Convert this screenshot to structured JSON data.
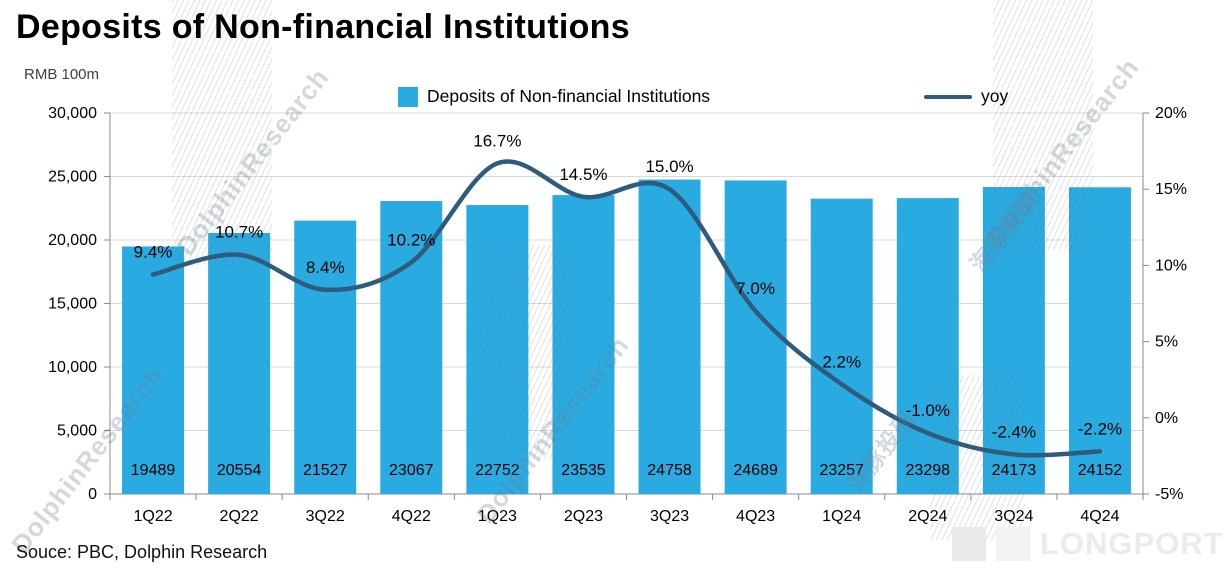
{
  "title": "Deposits of Non-financial Institutions",
  "unit_label": "RMB 100m",
  "source": "Souce: PBC, Dolphin Research",
  "legend": {
    "bars_label": "Deposits of Non-financial Institutions",
    "line_label": "yoy"
  },
  "watermarks": {
    "brand": "DolphinResearch",
    "brand_cn": "海豚投研",
    "logo": "LONGPORT"
  },
  "colors": {
    "bar": "#29ABE2",
    "line": "#2F5B7C",
    "grid": "#D9D9D9",
    "axis": "#898989",
    "text": "#000000"
  },
  "chart_data": {
    "type": "bar+line",
    "title": "Deposits of Non-financial Institutions",
    "ylabel_left": "RMB 100m",
    "legend_position": "top",
    "grid": true,
    "categories": [
      "1Q22",
      "2Q22",
      "3Q22",
      "4Q22",
      "1Q23",
      "2Q23",
      "3Q23",
      "4Q23",
      "1Q24",
      "2Q24",
      "3Q24",
      "4Q24"
    ],
    "series": [
      {
        "name": "Deposits of Non-financial Institutions",
        "type": "bar",
        "axis": "left",
        "values": [
          19489,
          20554,
          21527,
          23067,
          22752,
          23535,
          24758,
          24689,
          23257,
          23298,
          24173,
          24152
        ]
      },
      {
        "name": "yoy",
        "type": "line",
        "axis": "right",
        "values": [
          9.4,
          10.7,
          8.4,
          10.2,
          16.7,
          14.5,
          15.0,
          7.0,
          2.2,
          -1.0,
          -2.4,
          -2.2
        ]
      }
    ],
    "left_axis": {
      "min": 0,
      "max": 30000,
      "step": 5000,
      "tick_labels": [
        "0",
        "5,000",
        "10,000",
        "15,000",
        "20,000",
        "25,000",
        "30,000"
      ]
    },
    "right_axis": {
      "min": -5,
      "max": 20,
      "step": 5,
      "tick_labels": [
        "-5%",
        "0%",
        "5%",
        "10%",
        "15%",
        "20%"
      ]
    },
    "bar_labels": [
      "19489",
      "20554",
      "21527",
      "23067",
      "22752",
      "23535",
      "24758",
      "24689",
      "23257",
      "23298",
      "24173",
      "24152"
    ],
    "line_labels": [
      "9.4%",
      "10.7%",
      "8.4%",
      "10.2%",
      "16.7%",
      "14.5%",
      "15.0%",
      "7.0%",
      "2.2%",
      "-1.0%",
      "-2.4%",
      "-2.2%"
    ]
  }
}
